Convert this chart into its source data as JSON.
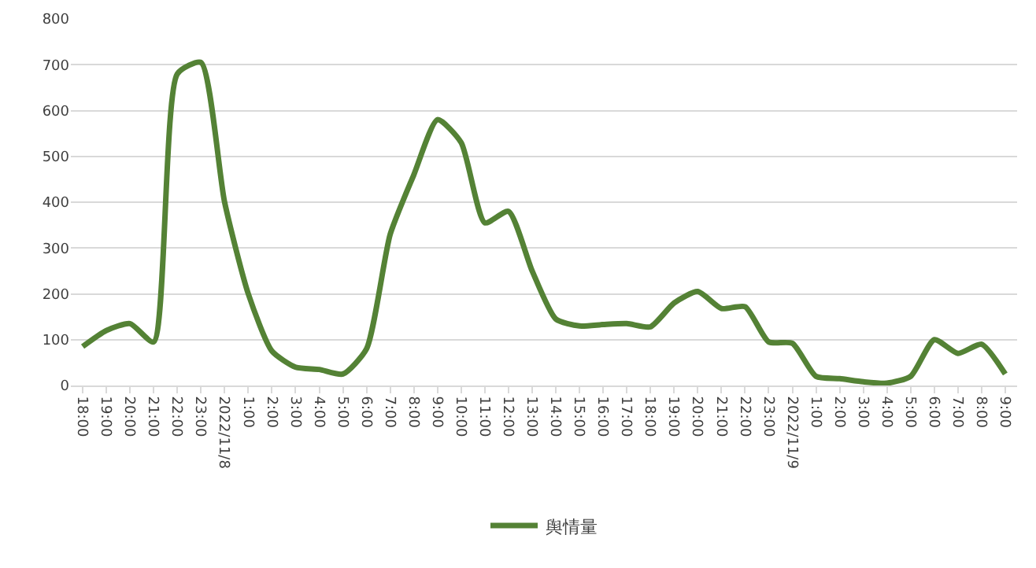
{
  "chart_data": {
    "type": "line",
    "categories": [
      "18:00",
      "19:00",
      "20:00",
      "21:00",
      "22:00",
      "23:00",
      "2022/11/8",
      "1:00",
      "2:00",
      "3:00",
      "4:00",
      "5:00",
      "6:00",
      "7:00",
      "8:00",
      "9:00",
      "10:00",
      "11:00",
      "12:00",
      "13:00",
      "14:00",
      "15:00",
      "16:00",
      "17:00",
      "18:00",
      "19:00",
      "20:00",
      "21:00",
      "22:00",
      "23:00",
      "2022/11/9",
      "1:00",
      "2:00",
      "3:00",
      "4:00",
      "5:00",
      "6:00",
      "7:00",
      "8:00",
      "9:00"
    ],
    "series": [
      {
        "name": "舆情量",
        "color": "#548235",
        "values": [
          85,
          120,
          135,
          95,
          680,
          705,
          400,
          200,
          75,
          40,
          35,
          25,
          80,
          330,
          460,
          580,
          530,
          355,
          380,
          250,
          145,
          130,
          133,
          135,
          128,
          180,
          205,
          168,
          172,
          95,
          92,
          20,
          15,
          8,
          5,
          20,
          100,
          70,
          90,
          25
        ]
      }
    ],
    "ylim": [
      0,
      800
    ],
    "yticks": [
      0,
      100,
      200,
      300,
      400,
      500,
      600,
      700,
      800
    ],
    "grid": "y",
    "legend": "bottom",
    "marker": "none",
    "line_style": "solid"
  }
}
